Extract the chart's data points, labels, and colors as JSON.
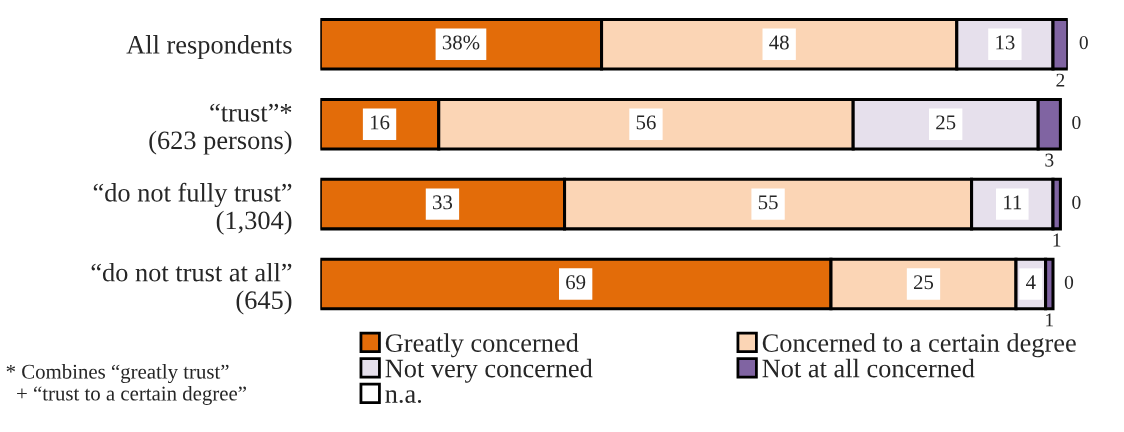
{
  "chart_data": {
    "type": "bar",
    "orientation": "horizontal",
    "stacked": true,
    "categories": [
      "All respondents",
      "“trust”*\n(623 persons)",
      "“do not fully trust”\n(1,304)",
      "“do not trust at all”\n(645)"
    ],
    "series": [
      {
        "name": "Greatly concerned",
        "color": "#e36c09",
        "values": [
          38,
          16,
          33,
          69
        ],
        "value_labels": [
          "38%",
          "16",
          "33",
          "69"
        ]
      },
      {
        "name": "Concerned to a certain degree",
        "color": "#fbd5b5",
        "values": [
          48,
          56,
          55,
          25
        ],
        "value_labels": [
          "48",
          "56",
          "55",
          "25"
        ]
      },
      {
        "name": "Not very concerned",
        "color": "#e6e0ec",
        "values": [
          13,
          25,
          11,
          4
        ],
        "value_labels": [
          "13",
          "25",
          "11",
          "4"
        ]
      },
      {
        "name": "Not at all concerned",
        "color": "#8064a2",
        "values": [
          2,
          3,
          1,
          1
        ],
        "value_labels": [
          "2",
          "3",
          "1",
          "1"
        ]
      },
      {
        "name": "n.a.",
        "color": "#ffffff",
        "values": [
          0,
          0,
          0,
          0
        ],
        "value_labels": [
          "0",
          "0",
          "0",
          "0"
        ]
      }
    ],
    "legend": "bottom",
    "annotations": [
      "* Combines “greatly trust”\n  + “trust to a certain degree”"
    ]
  }
}
